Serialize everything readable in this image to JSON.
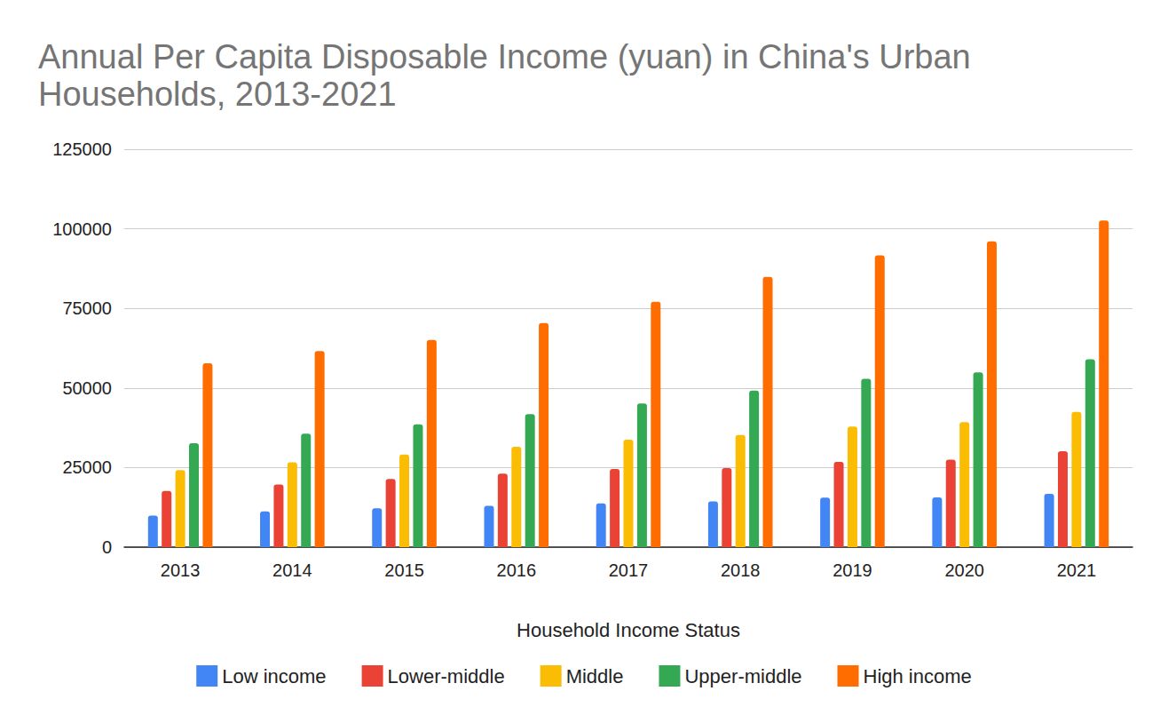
{
  "chart_data": {
    "type": "bar",
    "title": "Annual Per Capita Disposable Income (yuan) in China's Urban Households, 2013-2021",
    "x_label": "Household Income Status",
    "categories": [
      "2013",
      "2014",
      "2015",
      "2016",
      "2017",
      "2018",
      "2019",
      "2020",
      "2021"
    ],
    "series": [
      {
        "name": "Low income",
        "color": "#4285f4",
        "values": [
          9896,
          11219,
          12231,
          13004,
          13723,
          14387,
          15549,
          15598,
          16746
        ]
      },
      {
        "name": "Lower-middle",
        "color": "#ea4335",
        "values": [
          17628,
          19651,
          21446,
          23055,
          24550,
          24857,
          26784,
          27501,
          30133
        ]
      },
      {
        "name": "Middle",
        "color": "#fbbc04",
        "values": [
          24173,
          26651,
          29105,
          31522,
          33781,
          35196,
          37876,
          39278,
          42498
        ]
      },
      {
        "name": "Upper-middle",
        "color": "#34a853",
        "values": [
          32614,
          35631,
          38572,
          41806,
          45163,
          49174,
          52907,
          54910,
          59005
        ]
      },
      {
        "name": "High income",
        "color": "#ff6d01",
        "values": [
          57762,
          61615,
          65082,
          70348,
          77097,
          84907,
          91683,
          96062,
          102596
        ]
      }
    ],
    "ylim": [
      0,
      125000
    ],
    "yticks": [
      0,
      25000,
      50000,
      75000,
      100000,
      125000
    ],
    "grid": true,
    "legend": "bottom"
  }
}
